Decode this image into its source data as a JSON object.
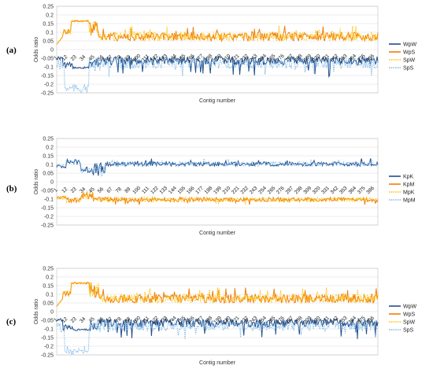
{
  "panels": [
    {
      "label": "(a)",
      "chart_data": {
        "type": "line",
        "ylabel": "Odds ratio",
        "xlabel": "Contig number",
        "ylim": [
          -0.25,
          0.25
        ],
        "yticks": [
          0.25,
          0.2,
          0.15,
          0.1,
          0.05,
          0,
          -0.05,
          -0.1,
          -0.15,
          -0.2,
          -0.25
        ],
        "ytick_labels": [
          "0.25",
          "0.2",
          "0.15",
          "0.1",
          "0.05",
          "0",
          "-0.05",
          "-0.1",
          "-0.15",
          "-0.2",
          "-0.25"
        ],
        "grid": true,
        "legend_position": "right",
        "x_tick_labels": [
          "1",
          "12",
          "23",
          "34",
          "45",
          "56",
          "67",
          "78",
          "89",
          "100",
          "111",
          "122",
          "133",
          "144",
          "155",
          "166",
          "177",
          "188",
          "199",
          "210",
          "221",
          "232",
          "243",
          "254",
          "265",
          "276",
          "287",
          "298",
          "309",
          "320",
          "331",
          "342",
          "353",
          "364",
          "375",
          "386"
        ],
        "series": [
          {
            "name": "WpW",
            "color": "#1f4e8c",
            "style": "solid",
            "side": "neg"
          },
          {
            "name": "WpS",
            "color": "#f07f09",
            "style": "solid",
            "side": "pos"
          },
          {
            "name": "SpW",
            "color": "#ffc000",
            "style": "dotted",
            "side": "pos"
          },
          {
            "name": "SpS",
            "color": "#7fb8e8",
            "style": "dotted",
            "side": "neg"
          }
        ]
      }
    },
    {
      "label": "(b)",
      "chart_data": {
        "type": "line",
        "ylabel": "Odds ratio",
        "xlabel": "Contig number",
        "ylim": [
          -0.25,
          0.25
        ],
        "yticks": [
          0.25,
          0.2,
          0.15,
          0.1,
          0.05,
          0,
          -0.05,
          -0.1,
          -0.15,
          -0.2,
          -0.25
        ],
        "ytick_labels": [
          "0.25",
          "0.2",
          "0.15",
          "0.1",
          "0.05",
          "0",
          "-0.05",
          "-0.1",
          "-0.15",
          "-0.2",
          "-0.25"
        ],
        "grid": true,
        "legend_position": "right",
        "x_tick_labels": [
          "1",
          "12",
          "23",
          "34",
          "45",
          "56",
          "67",
          "78",
          "89",
          "100",
          "111",
          "122",
          "133",
          "144",
          "155",
          "166",
          "177",
          "188",
          "199",
          "210",
          "221",
          "232",
          "243",
          "254",
          "265",
          "276",
          "287",
          "298",
          "309",
          "320",
          "331",
          "342",
          "353",
          "364",
          "375",
          "386"
        ],
        "series": [
          {
            "name": "KpK",
            "color": "#1f4e8c",
            "style": "solid",
            "side": "pos"
          },
          {
            "name": "KpM",
            "color": "#f07f09",
            "style": "solid",
            "side": "neg"
          },
          {
            "name": "MpK",
            "color": "#ffc000",
            "style": "dotted",
            "side": "neg"
          },
          {
            "name": "MpM",
            "color": "#7fb8e8",
            "style": "dotted",
            "side": "pos"
          }
        ]
      }
    },
    {
      "label": "(c)",
      "chart_data": {
        "type": "line",
        "ylabel": "Odds ratio",
        "xlabel": "Contig number",
        "ylim": [
          -0.25,
          0.25
        ],
        "yticks": [
          0.25,
          0.2,
          0.15,
          0.1,
          0.05,
          0,
          -0.05,
          -0.1,
          -0.15,
          -0.2,
          -0.25
        ],
        "ytick_labels": [
          "0.25",
          "0.2",
          "0.15",
          "0.1",
          "0.05",
          "0",
          "-0.05",
          "-0.1",
          "-0.15",
          "-0.2",
          "-0.25"
        ],
        "grid": true,
        "legend_position": "right",
        "x_tick_labels": [
          "1",
          "12",
          "23",
          "34",
          "45",
          "56",
          "67",
          "78",
          "89",
          "100",
          "111",
          "122",
          "133",
          "144",
          "155",
          "166",
          "177",
          "188",
          "199",
          "210",
          "221",
          "232",
          "243",
          "254",
          "265",
          "276",
          "287",
          "298",
          "309",
          "320",
          "331",
          "342",
          "353",
          "364",
          "375",
          "386"
        ],
        "series": [
          {
            "name": "WpW",
            "color": "#1f4e8c",
            "style": "solid",
            "side": "neg"
          },
          {
            "name": "WpS",
            "color": "#f07f09",
            "style": "solid",
            "side": "pos"
          },
          {
            "name": "SpW",
            "color": "#ffc000",
            "style": "dotted",
            "side": "pos"
          },
          {
            "name": "SpS",
            "color": "#7fb8e8",
            "style": "dotted",
            "side": "neg"
          }
        ]
      }
    }
  ]
}
